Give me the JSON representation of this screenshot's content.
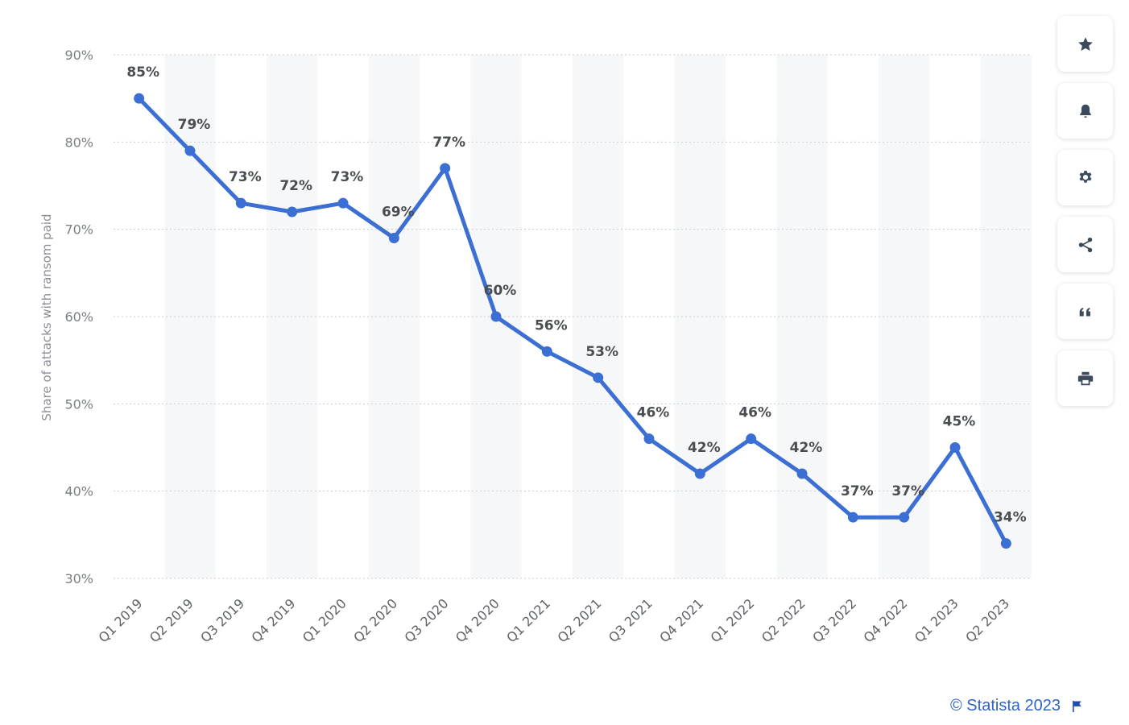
{
  "chart_data": {
    "type": "line",
    "categories": [
      "Q1 2019",
      "Q2 2019",
      "Q3 2019",
      "Q4 2019",
      "Q1 2020",
      "Q2 2020",
      "Q3 2020",
      "Q4 2020",
      "Q1 2021",
      "Q2 2021",
      "Q3 2021",
      "Q4 2021",
      "Q1 2022",
      "Q2 2022",
      "Q3 2022",
      "Q4 2022",
      "Q1 2023",
      "Q2 2023"
    ],
    "series": [
      {
        "values": [
          85,
          79,
          73,
          72,
          73,
          69,
          77,
          60,
          56,
          53,
          46,
          42,
          46,
          42,
          37,
          37,
          45,
          34
        ]
      }
    ],
    "data_labels": [
      "85%",
      "79%",
      "73%",
      "72%",
      "73%",
      "69%",
      "77%",
      "60%",
      "56%",
      "53%",
      "46%",
      "42%",
      "46%",
      "42%",
      "37%",
      "37%",
      "45%",
      "34%"
    ],
    "ylabel": "Share of attacks with ransom paid",
    "ylim": [
      30,
      90
    ],
    "yticks": [
      "30%",
      "40%",
      "50%",
      "60%",
      "70%",
      "80%",
      "90%"
    ],
    "grid": true,
    "line_color": "#3b6fd4"
  },
  "toolbar": {
    "buttons": [
      {
        "name": "star-icon"
      },
      {
        "name": "bell-icon"
      },
      {
        "name": "gear-icon"
      },
      {
        "name": "share-icon"
      },
      {
        "name": "quote-icon"
      },
      {
        "name": "print-icon"
      }
    ]
  },
  "footer": {
    "credit": "© Statista 2023",
    "flag_icon": "flag-icon"
  }
}
